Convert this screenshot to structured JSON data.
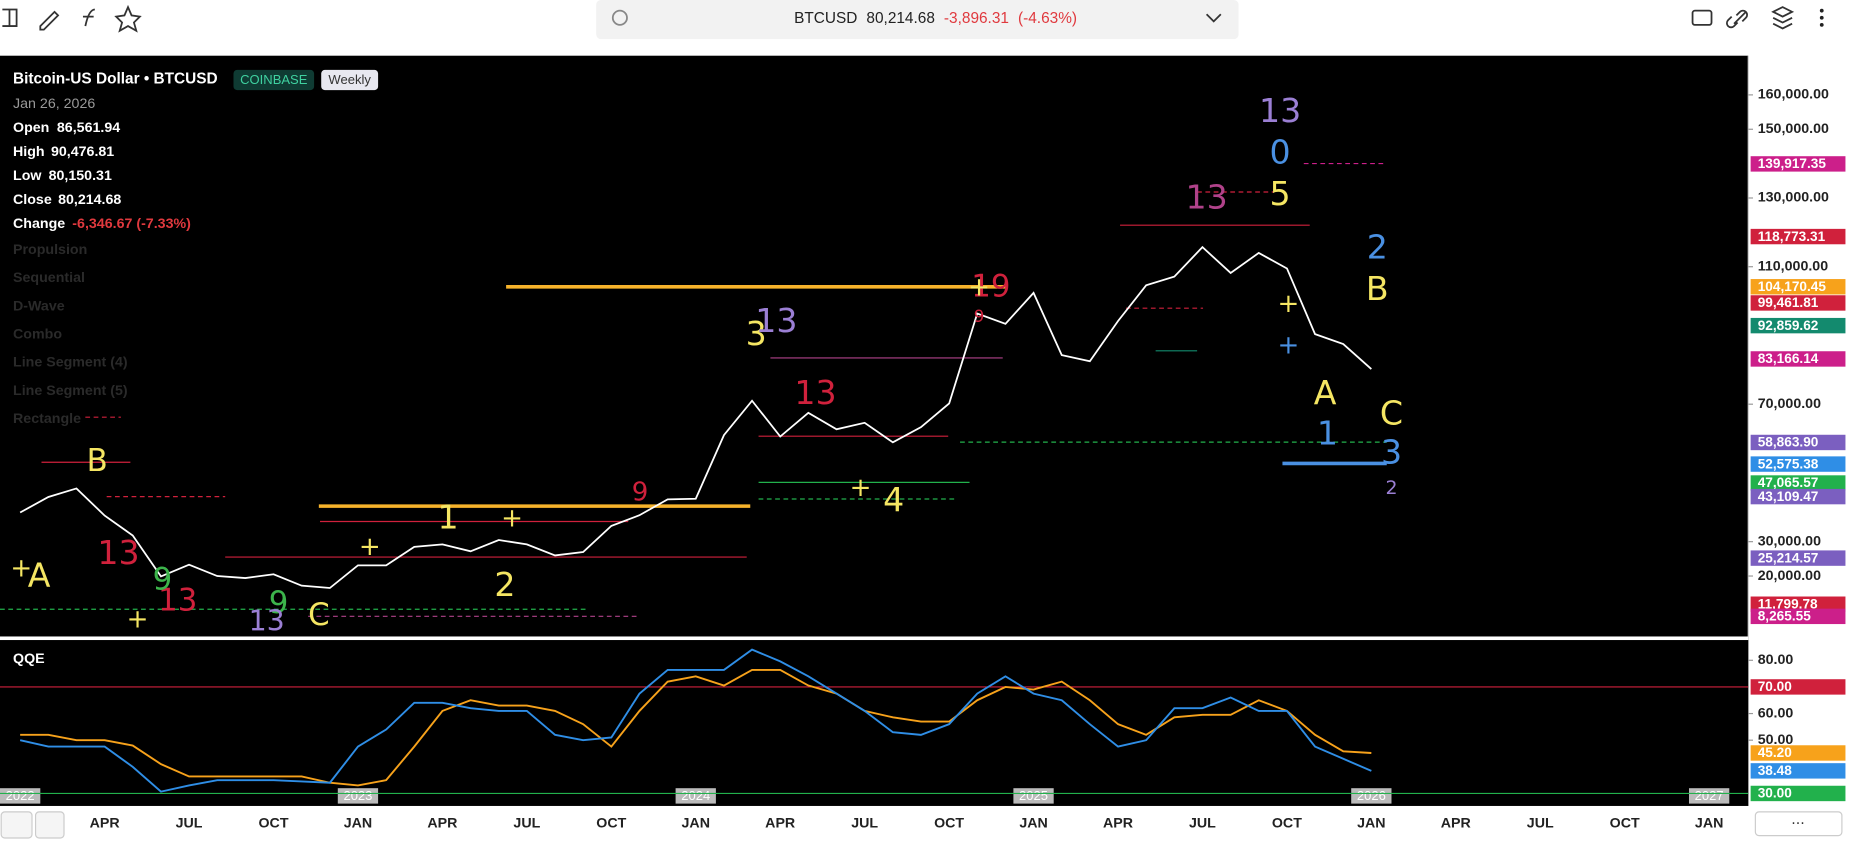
{
  "toolbar": {
    "symbol": "BTCUSD",
    "price": "80,214.68",
    "change": "-3,896.31",
    "change_pct": "(-4.63%)"
  },
  "legend": {
    "title": "Bitcoin-US Dollar • BTCUSD",
    "exchange": "COINBASE",
    "interval": "Weekly",
    "date": "Jan 26, 2026",
    "ohlc": [
      {
        "label": "Open",
        "value": "86,561.94"
      },
      {
        "label": "High",
        "value": "90,476.81"
      },
      {
        "label": "Low",
        "value": "80,150.31"
      },
      {
        "label": "Close",
        "value": "80,214.68"
      },
      {
        "label": "Change",
        "value": "-6,346.67 (-7.33%)"
      }
    ],
    "indicators": [
      "Propulsion",
      "Sequential",
      "D-Wave",
      "Combo",
      "Line Segment (4)",
      "Line Segment (5)",
      "Rectangle"
    ]
  },
  "time_axis": {
    "months": [
      "APR",
      "JUL",
      "OCT",
      "JAN",
      "APR",
      "JUL",
      "OCT",
      "JAN",
      "APR",
      "JUL",
      "OCT",
      "JAN",
      "APR",
      "JUL",
      "OCT",
      "JAN",
      "APR",
      "JUL",
      "OCT",
      "JAN"
    ],
    "years": [
      "2022",
      "2023",
      "2024",
      "2025",
      "2026",
      "2027"
    ]
  },
  "chart_data": [
    {
      "type": "line",
      "color": "#ffffff",
      "values": [
        38500,
        43000,
        45500,
        37600,
        31800,
        19900,
        23300,
        20000,
        19400,
        20500,
        17200,
        16500,
        23100,
        23100,
        28500,
        29200,
        27200,
        30500,
        29200,
        26000,
        27000,
        34600,
        37700,
        42300,
        42500,
        61000,
        71000,
        60600,
        67500,
        62700,
        64600,
        58900,
        63300,
        70200,
        96400,
        93400,
        102400,
        84300,
        82500,
        94200,
        104600,
        107100,
        115700,
        108200,
        114000,
        109500,
        90400,
        87500,
        80214.68
      ],
      "ylim": [
        3100,
        171400
      ],
      "yticks": [
        {
          "value": 20000,
          "label": "20,000.00"
        },
        {
          "value": 30000,
          "label": "30,000.00"
        },
        {
          "value": 70000,
          "label": "70,000.00"
        },
        {
          "value": 110000,
          "label": "110,000.00"
        },
        {
          "value": 130000,
          "label": "130,000.00"
        },
        {
          "value": 150000,
          "label": "150,000.00"
        },
        {
          "value": 160000,
          "label": "160,000.00"
        }
      ],
      "price_tags": [
        {
          "value": 139917.35,
          "label": "139,917.35",
          "color": "#cc1f8a"
        },
        {
          "value": 118773.31,
          "label": "118,773.31",
          "color": "#d0213c"
        },
        {
          "value": 104170.45,
          "label": "104,170.45",
          "color": "#f7a21b"
        },
        {
          "value": 99461.81,
          "label": "99,461.81",
          "color": "#d0213c"
        },
        {
          "value": 92859.62,
          "label": "92,859.62",
          "color": "#138a6e"
        },
        {
          "value": 83166.14,
          "label": "83,166.14",
          "color": "#cc1f8a"
        },
        {
          "value": 58863.9,
          "label": "58,863.90",
          "color": "#7b5fc0"
        },
        {
          "value": 52575.38,
          "label": "52,575.38",
          "color": "#2f8ee6"
        },
        {
          "value": 47065.57,
          "label": "47,065.57",
          "color": "#22b14c"
        },
        {
          "value": 43109.47,
          "label": "43,109.47",
          "color": "#7b5fc0"
        },
        {
          "value": 25214.57,
          "label": "25,214.57",
          "color": "#7b5fc0"
        },
        {
          "value": 11799.78,
          "label": "11,799.78",
          "color": "#d0213c"
        },
        {
          "value": 8265.55,
          "label": "8,265.55",
          "color": "#cc1f8a"
        }
      ],
      "annotations": [
        {
          "text": "13",
          "color": "#9b7fd4"
        },
        {
          "text": "0",
          "color": "#4a90e2"
        },
        {
          "text": "5",
          "color": "#f5e663"
        },
        {
          "text": "2",
          "color": "#4a90e2"
        },
        {
          "text": "B",
          "color": "#f5e663"
        },
        {
          "text": "A",
          "color": "#f5e663"
        },
        {
          "text": "C",
          "color": "#f5e663"
        },
        {
          "text": "1",
          "color": "#4a90e2"
        },
        {
          "text": "3",
          "color": "#4a90e2"
        },
        {
          "text": "2",
          "color": "#9b7fd4"
        },
        {
          "text": "13",
          "color": "#b0428a"
        },
        {
          "text": "3",
          "color": "#f5e663"
        },
        {
          "text": "13",
          "color": "#9b7fd4"
        },
        {
          "text": "9",
          "color": "#d0213c"
        },
        {
          "text": "13",
          "color": "#d0213c"
        },
        {
          "text": "4",
          "color": "#f5e663"
        },
        {
          "text": "1",
          "color": "#f5e663"
        },
        {
          "text": "2",
          "color": "#f5e663"
        },
        {
          "text": "C",
          "color": "#f5e663"
        },
        {
          "text": "B",
          "color": "#f5e663"
        },
        {
          "text": "A",
          "color": "#f5e663"
        },
        {
          "text": "13",
          "color": "#d0213c"
        },
        {
          "text": "13",
          "color": "#d0213c"
        },
        {
          "text": "9",
          "color": "#3cb44b"
        },
        {
          "text": "9",
          "color": "#3cb44b"
        },
        {
          "text": "13",
          "color": "#9b7fd4"
        },
        {
          "text": "19",
          "color": "#d0213c"
        },
        {
          "text": "9",
          "color": "#d0213c"
        },
        {
          "text": "+",
          "color": "#f5e663"
        },
        {
          "text": "+",
          "color": "#4a90e2"
        },
        {
          "text": "+",
          "color": "#f5e663"
        },
        {
          "text": "+",
          "color": "#f5e663"
        },
        {
          "text": "+",
          "color": "#f5e663"
        },
        {
          "text": "+",
          "color": "#f5e663"
        },
        {
          "text": "+",
          "color": "#f5e663"
        },
        {
          "text": "+",
          "color": "#f5e663"
        }
      ]
    },
    {
      "type": "line",
      "title": "QQE",
      "series": [
        {
          "color": "#f7a21b",
          "values": [
            52,
            52,
            50,
            50,
            48,
            41,
            36.4,
            36.4,
            36.4,
            36.4,
            36.4,
            34,
            33,
            35,
            47.6,
            61,
            65,
            63,
            63,
            61,
            56,
            47.6,
            61,
            72,
            74,
            70.5,
            76.4,
            76.4,
            70.5,
            67.5,
            61,
            58.6,
            57,
            57,
            65,
            70,
            69,
            72,
            65,
            56,
            52,
            58.6,
            59.5,
            59.5,
            65,
            61,
            52,
            45.8,
            45.2
          ]
        },
        {
          "color": "#2f8ee6",
          "values": [
            50,
            47.6,
            47.6,
            47.6,
            40,
            30.7,
            33,
            35,
            35,
            35,
            34.5,
            34,
            47.6,
            54,
            64,
            64,
            62,
            61,
            61,
            52,
            50,
            51,
            67.5,
            76.4,
            76.4,
            76.4,
            84,
            79.6,
            74,
            67.5,
            61,
            53,
            52,
            56,
            67.5,
            74,
            67.5,
            65,
            56,
            47.6,
            50,
            62,
            62,
            66,
            61,
            61,
            47.6,
            43,
            38.48
          ]
        }
      ],
      "ylim": [
        25.3,
        87.6
      ],
      "yticks": [
        {
          "value": 50,
          "label": "50.00"
        },
        {
          "value": 60,
          "label": "60.00"
        },
        {
          "value": 80,
          "label": "80.00"
        }
      ],
      "hlines": [
        {
          "value": 70,
          "label": "70.00",
          "color": "#d0213c"
        },
        {
          "value": 30,
          "label": "30.00",
          "color": "#22b14c"
        }
      ],
      "value_tags": [
        {
          "value": 45.2,
          "label": "45.20",
          "color": "#f7a21b"
        },
        {
          "value": 38.48,
          "label": "38.48",
          "color": "#2f8ee6"
        }
      ]
    }
  ]
}
